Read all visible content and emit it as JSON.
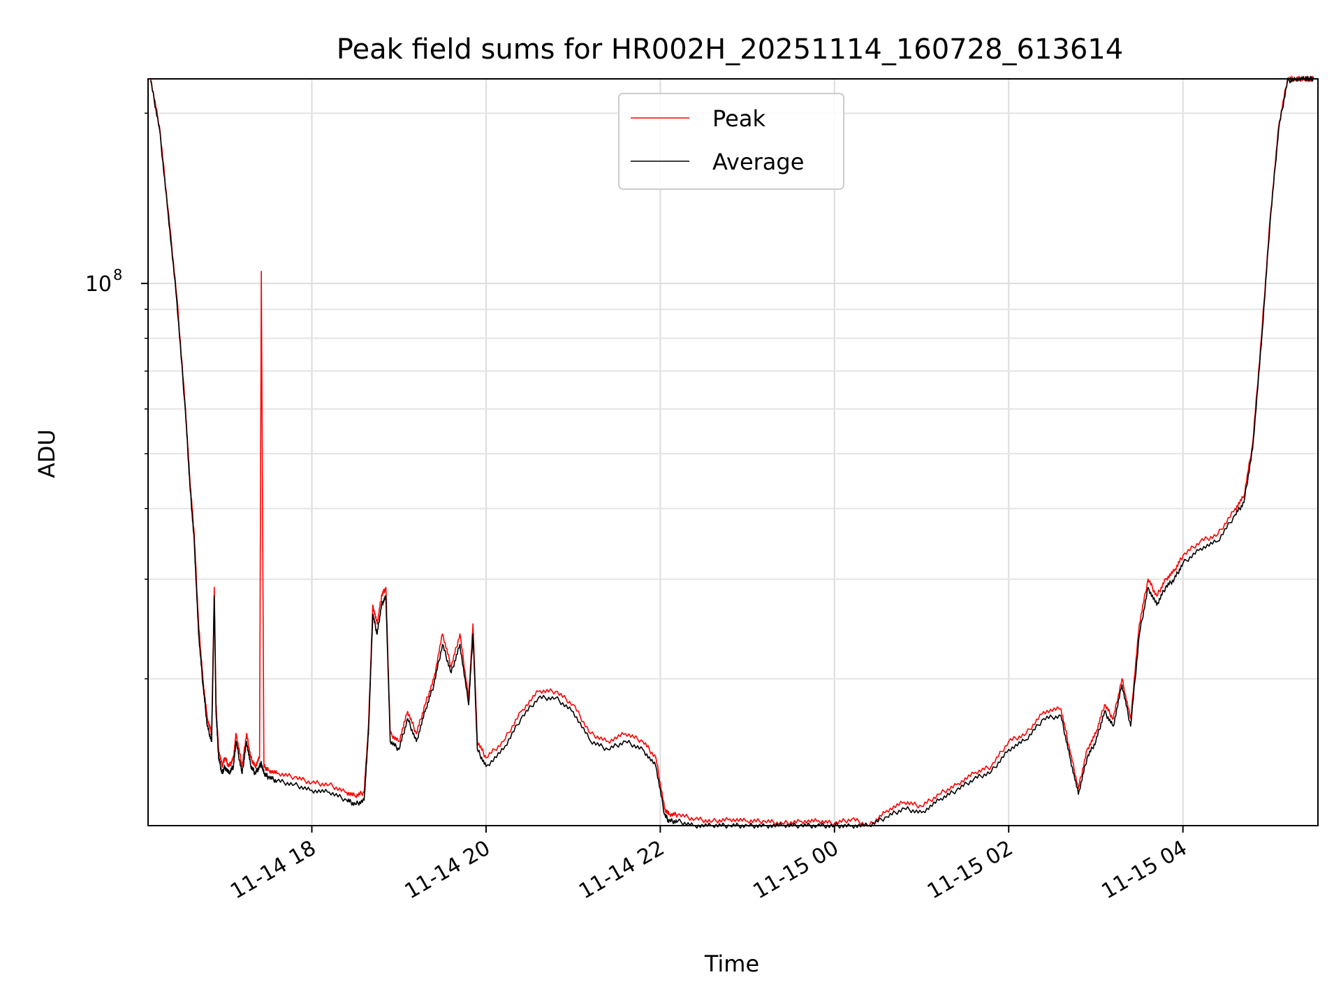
{
  "chart_data": {
    "type": "line",
    "title": "Peak field sums for HR002H_20251114_160728_613614",
    "xlabel": "Time",
    "ylabel": "ADU",
    "yscale": "log",
    "ylim": [
      11000000,
      230000000
    ],
    "xlim_hours": [
      16.12,
      5.55
    ],
    "x_ticks": [
      {
        "hour": 18,
        "label": "11-14 18"
      },
      {
        "hour": 20,
        "label": "11-14 20"
      },
      {
        "hour": 22,
        "label": "11-14 22"
      },
      {
        "hour": 24,
        "label": "11-15 00"
      },
      {
        "hour": 26,
        "label": "11-15 02"
      },
      {
        "hour": 28,
        "label": "11-15 04"
      }
    ],
    "y_major_ticks": [
      {
        "value": 100000000,
        "base": "10",
        "exponent": "8"
      }
    ],
    "y_minor_ticks": [
      20000000,
      30000000,
      40000000,
      50000000,
      60000000,
      70000000,
      80000000,
      90000000,
      200000000
    ],
    "grid": true,
    "legend": "upper center",
    "series": [
      {
        "name": "Peak",
        "color": "#ff0000",
        "x_hours": [
          16.15,
          16.25,
          16.35,
          16.45,
          16.55,
          16.6,
          16.65,
          16.7,
          16.75,
          16.8,
          16.85,
          16.88,
          16.9,
          16.93,
          16.97,
          17.0,
          17.05,
          17.1,
          17.13,
          17.2,
          17.25,
          17.3,
          17.35,
          17.4,
          17.42,
          17.45,
          17.5,
          17.6,
          17.8,
          18.0,
          18.2,
          18.4,
          18.5,
          18.6,
          18.65,
          18.7,
          18.75,
          18.8,
          18.85,
          18.9,
          19.0,
          19.1,
          19.2,
          19.3,
          19.4,
          19.5,
          19.6,
          19.7,
          19.8,
          19.85,
          19.9,
          20.0,
          20.2,
          20.4,
          20.6,
          20.8,
          21.0,
          21.2,
          21.4,
          21.6,
          21.8,
          21.95,
          22.05,
          22.1,
          22.2,
          22.4,
          22.6,
          22.8,
          23.0,
          23.2,
          23.4,
          23.6,
          23.8,
          24.0,
          24.2,
          24.4,
          24.6,
          24.8,
          25.0,
          25.2,
          25.4,
          25.6,
          25.8,
          26.0,
          26.2,
          26.4,
          26.6,
          26.7,
          26.8,
          26.9,
          27.0,
          27.1,
          27.2,
          27.3,
          27.4,
          27.5,
          27.6,
          27.7,
          27.8,
          27.9,
          28.0,
          28.2,
          28.4,
          28.6,
          28.7,
          28.8,
          28.9,
          29.0,
          29.1,
          29.2,
          29.3,
          29.4,
          29.45,
          29.5
        ],
        "values": [
          230000000,
          190000000,
          135000000,
          95000000,
          60000000,
          45000000,
          36000000,
          25000000,
          20000000,
          17000000,
          16000000,
          29000000,
          18000000,
          15000000,
          14000000,
          14500000,
          14000000,
          14500000,
          16000000,
          14000000,
          16000000,
          14500000,
          14000000,
          14500000,
          105000000,
          14000000,
          13800000,
          13600000,
          13400000,
          13100000,
          13000000,
          12600000,
          12400000,
          12600000,
          16500000,
          27000000,
          25000000,
          28000000,
          29000000,
          16000000,
          15500000,
          17500000,
          16000000,
          18000000,
          20000000,
          24000000,
          21000000,
          24000000,
          18500000,
          25000000,
          15500000,
          14500000,
          15500000,
          17500000,
          19000000,
          19000000,
          18000000,
          16000000,
          15500000,
          16000000,
          15500000,
          14500000,
          11800000,
          11500000,
          11500000,
          11300000,
          11200000,
          11300000,
          11200000,
          11200000,
          11100000,
          11200000,
          11200000,
          11100000,
          11300000,
          11000000,
          11700000,
          12100000,
          11900000,
          12500000,
          13000000,
          13600000,
          14000000,
          15500000,
          16000000,
          17500000,
          17700000,
          15000000,
          12800000,
          15000000,
          16000000,
          18000000,
          17000000,
          20000000,
          17000000,
          25000000,
          30000000,
          28000000,
          30000000,
          31000000,
          33000000,
          35000000,
          36000000,
          40000000,
          42000000,
          52000000,
          80000000,
          130000000,
          190000000,
          230000000,
          240000000,
          240000000,
          240000000,
          240000000
        ]
      },
      {
        "name": "Average",
        "color": "#000000",
        "x_hours": [
          16.15,
          16.25,
          16.35,
          16.45,
          16.55,
          16.6,
          16.65,
          16.7,
          16.75,
          16.8,
          16.85,
          16.88,
          16.9,
          16.93,
          16.97,
          17.0,
          17.05,
          17.1,
          17.13,
          17.2,
          17.25,
          17.3,
          17.35,
          17.4,
          17.42,
          17.45,
          17.5,
          17.6,
          17.8,
          18.0,
          18.2,
          18.4,
          18.5,
          18.6,
          18.65,
          18.7,
          18.75,
          18.8,
          18.85,
          18.9,
          19.0,
          19.1,
          19.2,
          19.3,
          19.4,
          19.5,
          19.6,
          19.7,
          19.8,
          19.85,
          19.9,
          20.0,
          20.2,
          20.4,
          20.6,
          20.8,
          21.0,
          21.2,
          21.4,
          21.6,
          21.8,
          21.95,
          22.05,
          22.1,
          22.2,
          22.4,
          22.6,
          22.8,
          23.0,
          23.2,
          23.4,
          23.6,
          23.8,
          24.0,
          24.2,
          24.4,
          24.6,
          24.8,
          25.0,
          25.2,
          25.4,
          25.6,
          25.8,
          26.0,
          26.2,
          26.4,
          26.6,
          26.7,
          26.8,
          26.9,
          27.0,
          27.1,
          27.2,
          27.3,
          27.4,
          27.5,
          27.6,
          27.7,
          27.8,
          27.9,
          28.0,
          28.2,
          28.4,
          28.6,
          28.7,
          28.8,
          28.9,
          29.0,
          29.1,
          29.2,
          29.3,
          29.4,
          29.45,
          29.5
        ],
        "values": [
          228000000,
          188000000,
          133000000,
          93000000,
          59000000,
          44000000,
          35000000,
          24000000,
          19500000,
          16500000,
          15500000,
          28000000,
          17500000,
          14500000,
          13600000,
          14000000,
          13600000,
          14000000,
          15500000,
          13600000,
          15500000,
          14000000,
          13600000,
          14000000,
          14200000,
          13600000,
          13400000,
          13200000,
          13000000,
          12700000,
          12600000,
          12200000,
          12000000,
          12200000,
          16000000,
          26000000,
          24000000,
          27000000,
          28000000,
          15500000,
          15000000,
          17000000,
          15500000,
          17500000,
          19500000,
          23000000,
          20500000,
          23000000,
          18000000,
          24000000,
          15000000,
          14000000,
          15000000,
          17000000,
          18500000,
          18500000,
          17500000,
          15500000,
          15000000,
          15500000,
          15000000,
          14000000,
          11500000,
          11200000,
          11200000,
          11000000,
          10900000,
          11000000,
          10900000,
          10900000,
          10800000,
          10900000,
          10900000,
          10800000,
          11000000,
          10700000,
          11400000,
          11800000,
          11600000,
          12200000,
          12700000,
          13300000,
          13700000,
          15000000,
          15600000,
          17000000,
          17200000,
          14600000,
          12500000,
          14500000,
          15500000,
          17500000,
          16500000,
          19500000,
          16500000,
          24000000,
          29000000,
          27000000,
          29000000,
          30000000,
          32000000,
          34000000,
          35000000,
          39000000,
          41000000,
          51000000,
          78000000,
          128000000,
          188000000,
          228000000,
          238000000,
          238000000,
          238000000,
          238000000
        ]
      }
    ]
  }
}
